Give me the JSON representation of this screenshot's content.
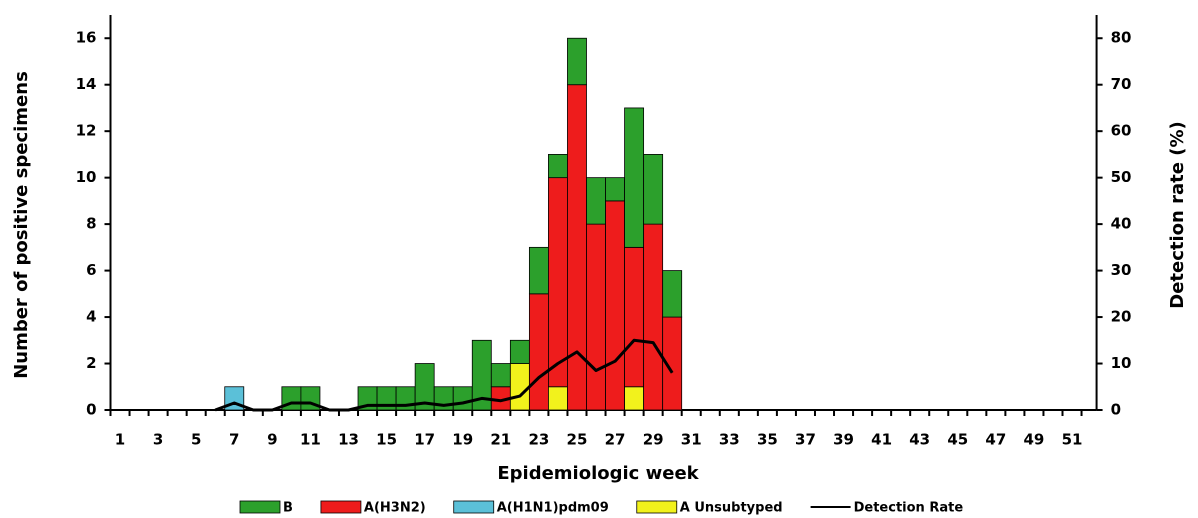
{
  "chart_data": {
    "type": "bar",
    "stacked": true,
    "x_label": "Epidemiologic week",
    "y_label": "Number of positive specimens",
    "y2_label": "Detection rate (%)",
    "categories": [
      1,
      null,
      3,
      null,
      5,
      null,
      7,
      null,
      9,
      null,
      11,
      null,
      13,
      null,
      15,
      null,
      17,
      null,
      19,
      null,
      21,
      null,
      23,
      null,
      25,
      null,
      27,
      null,
      29,
      null,
      31,
      null,
      33,
      null,
      35,
      null,
      37,
      null,
      39,
      null,
      41,
      null,
      43,
      null,
      45,
      null,
      47,
      null,
      49,
      null,
      51,
      null
    ],
    "series": [
      {
        "name": "B",
        "color": "#2ca02c",
        "values": [
          0,
          0,
          0,
          0,
          0,
          0,
          0,
          0,
          0,
          1,
          1,
          0,
          0,
          1,
          1,
          1,
          2,
          1,
          1,
          3,
          1,
          1,
          2,
          1,
          2,
          2,
          1,
          6,
          3,
          2,
          0,
          0,
          0,
          0,
          0,
          0,
          0,
          0,
          0,
          0,
          0,
          0,
          0,
          0,
          0,
          0,
          0,
          0,
          0,
          0,
          0,
          0
        ]
      },
      {
        "name": "A(H3N2)",
        "color": "#ee1c1c",
        "values": [
          0,
          0,
          0,
          0,
          0,
          0,
          0,
          0,
          0,
          0,
          0,
          0,
          0,
          0,
          0,
          0,
          0,
          0,
          0,
          0,
          1,
          0,
          5,
          9,
          14,
          8,
          9,
          6,
          8,
          4,
          0,
          0,
          0,
          0,
          0,
          0,
          0,
          0,
          0,
          0,
          0,
          0,
          0,
          0,
          0,
          0,
          0,
          0,
          0,
          0,
          0,
          0
        ]
      },
      {
        "name": "A(H1N1)pdm09",
        "color": "#5bc0d8",
        "values": [
          0,
          0,
          0,
          0,
          0,
          0,
          1,
          0,
          0,
          0,
          0,
          0,
          0,
          0,
          0,
          0,
          0,
          0,
          0,
          0,
          0,
          0,
          0,
          0,
          0,
          0,
          0,
          0,
          0,
          0,
          0,
          0,
          0,
          0,
          0,
          0,
          0,
          0,
          0,
          0,
          0,
          0,
          0,
          0,
          0,
          0,
          0,
          0,
          0,
          0,
          0,
          0
        ]
      },
      {
        "name": "A Unsubtyped",
        "color": "#f2f21c",
        "values": [
          0,
          0,
          0,
          0,
          0,
          0,
          0,
          0,
          0,
          0,
          0,
          0,
          0,
          0,
          0,
          0,
          0,
          0,
          0,
          0,
          0,
          2,
          0,
          1,
          0,
          0,
          0,
          1,
          0,
          0,
          0,
          0,
          0,
          0,
          0,
          0,
          0,
          0,
          0,
          0,
          0,
          0,
          0,
          0,
          0,
          0,
          0,
          0,
          0,
          0,
          0,
          0
        ]
      },
      {
        "name": "Detection Rate",
        "color": "#000000",
        "type": "line",
        "axis": "y2",
        "values": [
          null,
          null,
          null,
          null,
          null,
          0,
          1.5,
          0,
          0,
          1.5,
          1.5,
          0,
          0,
          1,
          1,
          1,
          1.5,
          1,
          1.5,
          2.5,
          2,
          3,
          7,
          10,
          12.5,
          8.5,
          10.5,
          15,
          14.5,
          8,
          null,
          null,
          null,
          null,
          null,
          null,
          null,
          null,
          null,
          null,
          null,
          null,
          null,
          null,
          null,
          null,
          null,
          null,
          null,
          null,
          null,
          null
        ]
      }
    ],
    "ylim": [
      0,
      17
    ],
    "yticks": [
      0,
      2,
      4,
      6,
      8,
      10,
      12,
      14,
      16
    ],
    "y2lim": [
      0,
      85
    ],
    "y2ticks": [
      0,
      10,
      20,
      30,
      40,
      50,
      60,
      70,
      80
    ]
  }
}
